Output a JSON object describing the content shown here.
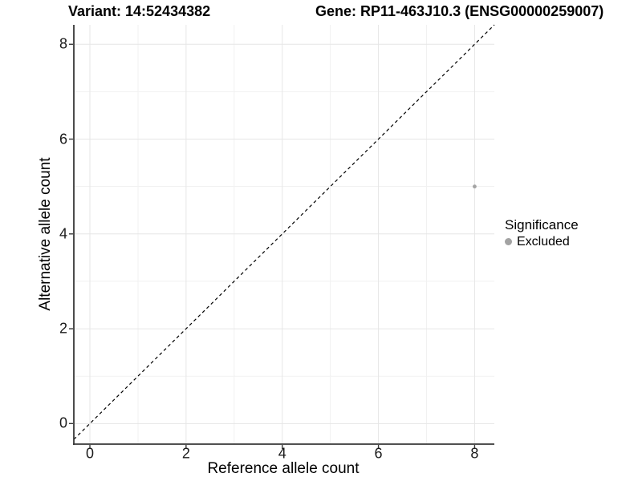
{
  "titles": {
    "variant": "Variant: 14:52434382",
    "gene": "Gene: RP11-463J10.3 (ENSG00000259007)"
  },
  "chart_data": {
    "type": "scatter",
    "title_left": "Variant: 14:52434382",
    "title_right": "Gene: RP11-463J10.3 (ENSG00000259007)",
    "xlabel": "Reference allele count",
    "ylabel": "Alternative allele count",
    "xlim": [
      -0.334,
      8.41
    ],
    "ylim": [
      -0.434,
      8.41
    ],
    "xticks": [
      0,
      2,
      4,
      6,
      8
    ],
    "yticks": [
      0,
      2,
      4,
      6,
      8
    ],
    "minor_xticks": [
      1,
      3,
      5,
      7
    ],
    "minor_yticks": [
      1,
      3,
      5,
      7
    ],
    "grid": true,
    "reference_line": {
      "slope": 1,
      "intercept": 0,
      "linetype": "dashed",
      "color": "#000000"
    },
    "series": [
      {
        "name": "Excluded",
        "color": "#a3a3a3",
        "points": [
          {
            "x": 8,
            "y": 5
          }
        ],
        "point_radius": 2.4
      }
    ],
    "legend": {
      "title": "Significance",
      "position": "right",
      "items": [
        {
          "label": "Excluded",
          "color": "#a3a3a3"
        }
      ]
    },
    "colors": {
      "grid_major": "#e6e6e6",
      "grid_minor": "#f1f1f1",
      "axis": "#383838",
      "background": "#ffffff"
    }
  }
}
